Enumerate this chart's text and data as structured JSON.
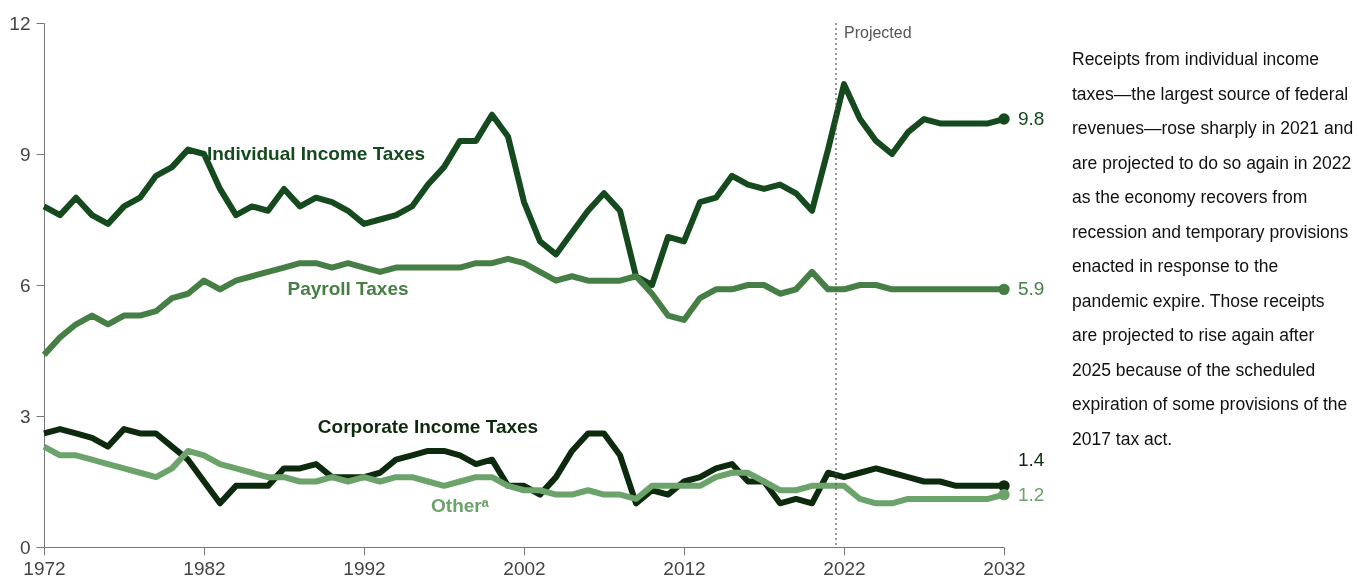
{
  "chart_data": {
    "type": "line",
    "x": [
      1972,
      1973,
      1974,
      1975,
      1976,
      1977,
      1978,
      1979,
      1980,
      1981,
      1982,
      1983,
      1984,
      1985,
      1986,
      1987,
      1988,
      1989,
      1990,
      1991,
      1992,
      1993,
      1994,
      1995,
      1996,
      1997,
      1998,
      1999,
      2000,
      2001,
      2002,
      2003,
      2004,
      2005,
      2006,
      2007,
      2008,
      2009,
      2010,
      2011,
      2012,
      2013,
      2014,
      2015,
      2016,
      2017,
      2018,
      2019,
      2020,
      2021,
      2022,
      2023,
      2024,
      2025,
      2026,
      2027,
      2028,
      2029,
      2030,
      2031,
      2032
    ],
    "series": [
      {
        "name": "Individual Income Taxes",
        "color": "#154a1e",
        "values": [
          7.8,
          7.6,
          8.0,
          7.6,
          7.4,
          7.8,
          8.0,
          8.5,
          8.7,
          9.1,
          9.0,
          8.2,
          7.6,
          7.8,
          7.7,
          8.2,
          7.8,
          8.0,
          7.9,
          7.7,
          7.4,
          7.5,
          7.6,
          7.8,
          8.3,
          8.7,
          9.3,
          9.3,
          9.9,
          9.4,
          7.9,
          7.0,
          6.7,
          7.2,
          7.7,
          8.1,
          7.7,
          6.2,
          6.0,
          7.1,
          7.0,
          7.9,
          8.0,
          8.5,
          8.3,
          8.2,
          8.3,
          8.1,
          7.7,
          9.1,
          10.6,
          9.8,
          9.3,
          9.0,
          9.5,
          9.8,
          9.7,
          9.7,
          9.7,
          9.7,
          9.8
        ],
        "value_labels": [
          null,
          null,
          null,
          null,
          null,
          null,
          null,
          null,
          null,
          null,
          null,
          null,
          null,
          null,
          null,
          null,
          null,
          null,
          null,
          null,
          null,
          null,
          null,
          null,
          null,
          null,
          null,
          null,
          null,
          null,
          null,
          null,
          null,
          null,
          null,
          null,
          null,
          null,
          null,
          null,
          null,
          null,
          null,
          null,
          null,
          null,
          null,
          null,
          null,
          null,
          null,
          null,
          null,
          null,
          null,
          null,
          null,
          null,
          null,
          null,
          "9.8"
        ]
      },
      {
        "name": "Payroll Taxes",
        "color": "#467f45",
        "values": [
          4.4,
          4.8,
          5.1,
          5.3,
          5.1,
          5.3,
          5.3,
          5.4,
          5.7,
          5.8,
          6.1,
          5.9,
          6.1,
          6.2,
          6.3,
          6.4,
          6.5,
          6.5,
          6.4,
          6.5,
          6.4,
          6.3,
          6.4,
          6.4,
          6.4,
          6.4,
          6.4,
          6.5,
          6.5,
          6.6,
          6.5,
          6.3,
          6.1,
          6.2,
          6.1,
          6.1,
          6.1,
          6.2,
          5.8,
          5.3,
          5.2,
          5.7,
          5.9,
          5.9,
          6.0,
          6.0,
          5.8,
          5.9,
          6.3,
          5.9,
          5.9,
          6.0,
          6.0,
          5.9,
          5.9,
          5.9,
          5.9,
          5.9,
          5.9,
          5.9,
          5.9
        ],
        "value_labels": [
          null,
          null,
          null,
          null,
          null,
          null,
          null,
          null,
          null,
          null,
          null,
          null,
          null,
          null,
          null,
          null,
          null,
          null,
          null,
          null,
          null,
          null,
          null,
          null,
          null,
          null,
          null,
          null,
          null,
          null,
          null,
          null,
          null,
          null,
          null,
          null,
          null,
          null,
          null,
          null,
          null,
          null,
          null,
          null,
          null,
          null,
          null,
          null,
          null,
          null,
          null,
          null,
          null,
          null,
          null,
          null,
          null,
          null,
          null,
          null,
          "5.9"
        ]
      },
      {
        "name": "Corporate Income Taxes",
        "color": "#0e2a0e",
        "values": [
          2.6,
          2.7,
          2.6,
          2.5,
          2.3,
          2.7,
          2.6,
          2.6,
          2.3,
          2.0,
          1.5,
          1.0,
          1.4,
          1.4,
          1.4,
          1.8,
          1.8,
          1.9,
          1.6,
          1.6,
          1.6,
          1.7,
          2.0,
          2.1,
          2.2,
          2.2,
          2.1,
          1.9,
          2.0,
          1.4,
          1.4,
          1.2,
          1.6,
          2.2,
          2.6,
          2.6,
          2.1,
          1.0,
          1.3,
          1.2,
          1.5,
          1.6,
          1.8,
          1.9,
          1.5,
          1.5,
          1.0,
          1.1,
          1.0,
          1.7,
          1.6,
          1.7,
          1.8,
          1.7,
          1.6,
          1.5,
          1.5,
          1.4,
          1.4,
          1.4,
          1.4
        ],
        "value_labels": [
          null,
          null,
          null,
          null,
          null,
          null,
          null,
          null,
          null,
          null,
          null,
          null,
          null,
          null,
          null,
          null,
          null,
          null,
          null,
          null,
          null,
          null,
          null,
          null,
          null,
          null,
          null,
          null,
          null,
          null,
          null,
          null,
          null,
          null,
          null,
          null,
          null,
          null,
          null,
          null,
          null,
          null,
          null,
          null,
          null,
          null,
          null,
          null,
          null,
          null,
          null,
          null,
          null,
          null,
          null,
          null,
          null,
          null,
          null,
          null,
          "1.4"
        ]
      },
      {
        "name": "Otherᵃ",
        "color": "#6ba36b",
        "values": [
          2.3,
          2.1,
          2.1,
          2.0,
          1.9,
          1.8,
          1.7,
          1.6,
          1.8,
          2.2,
          2.1,
          1.9,
          1.8,
          1.7,
          1.6,
          1.6,
          1.5,
          1.5,
          1.6,
          1.5,
          1.6,
          1.5,
          1.6,
          1.6,
          1.5,
          1.4,
          1.5,
          1.6,
          1.6,
          1.4,
          1.3,
          1.3,
          1.2,
          1.2,
          1.3,
          1.2,
          1.2,
          1.1,
          1.4,
          1.4,
          1.4,
          1.4,
          1.6,
          1.7,
          1.7,
          1.5,
          1.3,
          1.3,
          1.4,
          1.4,
          1.4,
          1.1,
          1.0,
          1.0,
          1.1,
          1.1,
          1.1,
          1.1,
          1.1,
          1.1,
          1.2
        ],
        "value_labels": [
          null,
          null,
          null,
          null,
          null,
          null,
          null,
          null,
          null,
          null,
          null,
          null,
          null,
          null,
          null,
          null,
          null,
          null,
          null,
          null,
          null,
          null,
          null,
          null,
          null,
          null,
          null,
          null,
          null,
          null,
          null,
          null,
          null,
          null,
          null,
          null,
          null,
          null,
          null,
          null,
          null,
          null,
          null,
          null,
          null,
          null,
          null,
          null,
          null,
          null,
          null,
          null,
          null,
          null,
          null,
          null,
          null,
          null,
          null,
          null,
          "1.2"
        ]
      }
    ],
    "xlim": [
      1972,
      2032
    ],
    "xticks": [
      1972,
      1982,
      1992,
      2002,
      2012,
      2022,
      2032
    ],
    "ylim": [
      0,
      12
    ],
    "yticks": [
      0,
      3,
      6,
      9,
      12
    ],
    "grid": false,
    "ref_lines": [
      {
        "axis": "x",
        "value": 2021.5,
        "label": "Projected",
        "line_style": "dotted",
        "color": "#555555"
      }
    ],
    "annotations": [
      "Receipts from individual income taxes—the largest source of federal revenues—rose sharply in 2021 and are projected to do so again in 2022 as the economy recovers from recession and temporary provisions enacted in response to the pandemic expire. Those receipts are projected to rise again after 2025 because of the scheduled expiration of some provisions of the 2017 tax act."
    ]
  }
}
